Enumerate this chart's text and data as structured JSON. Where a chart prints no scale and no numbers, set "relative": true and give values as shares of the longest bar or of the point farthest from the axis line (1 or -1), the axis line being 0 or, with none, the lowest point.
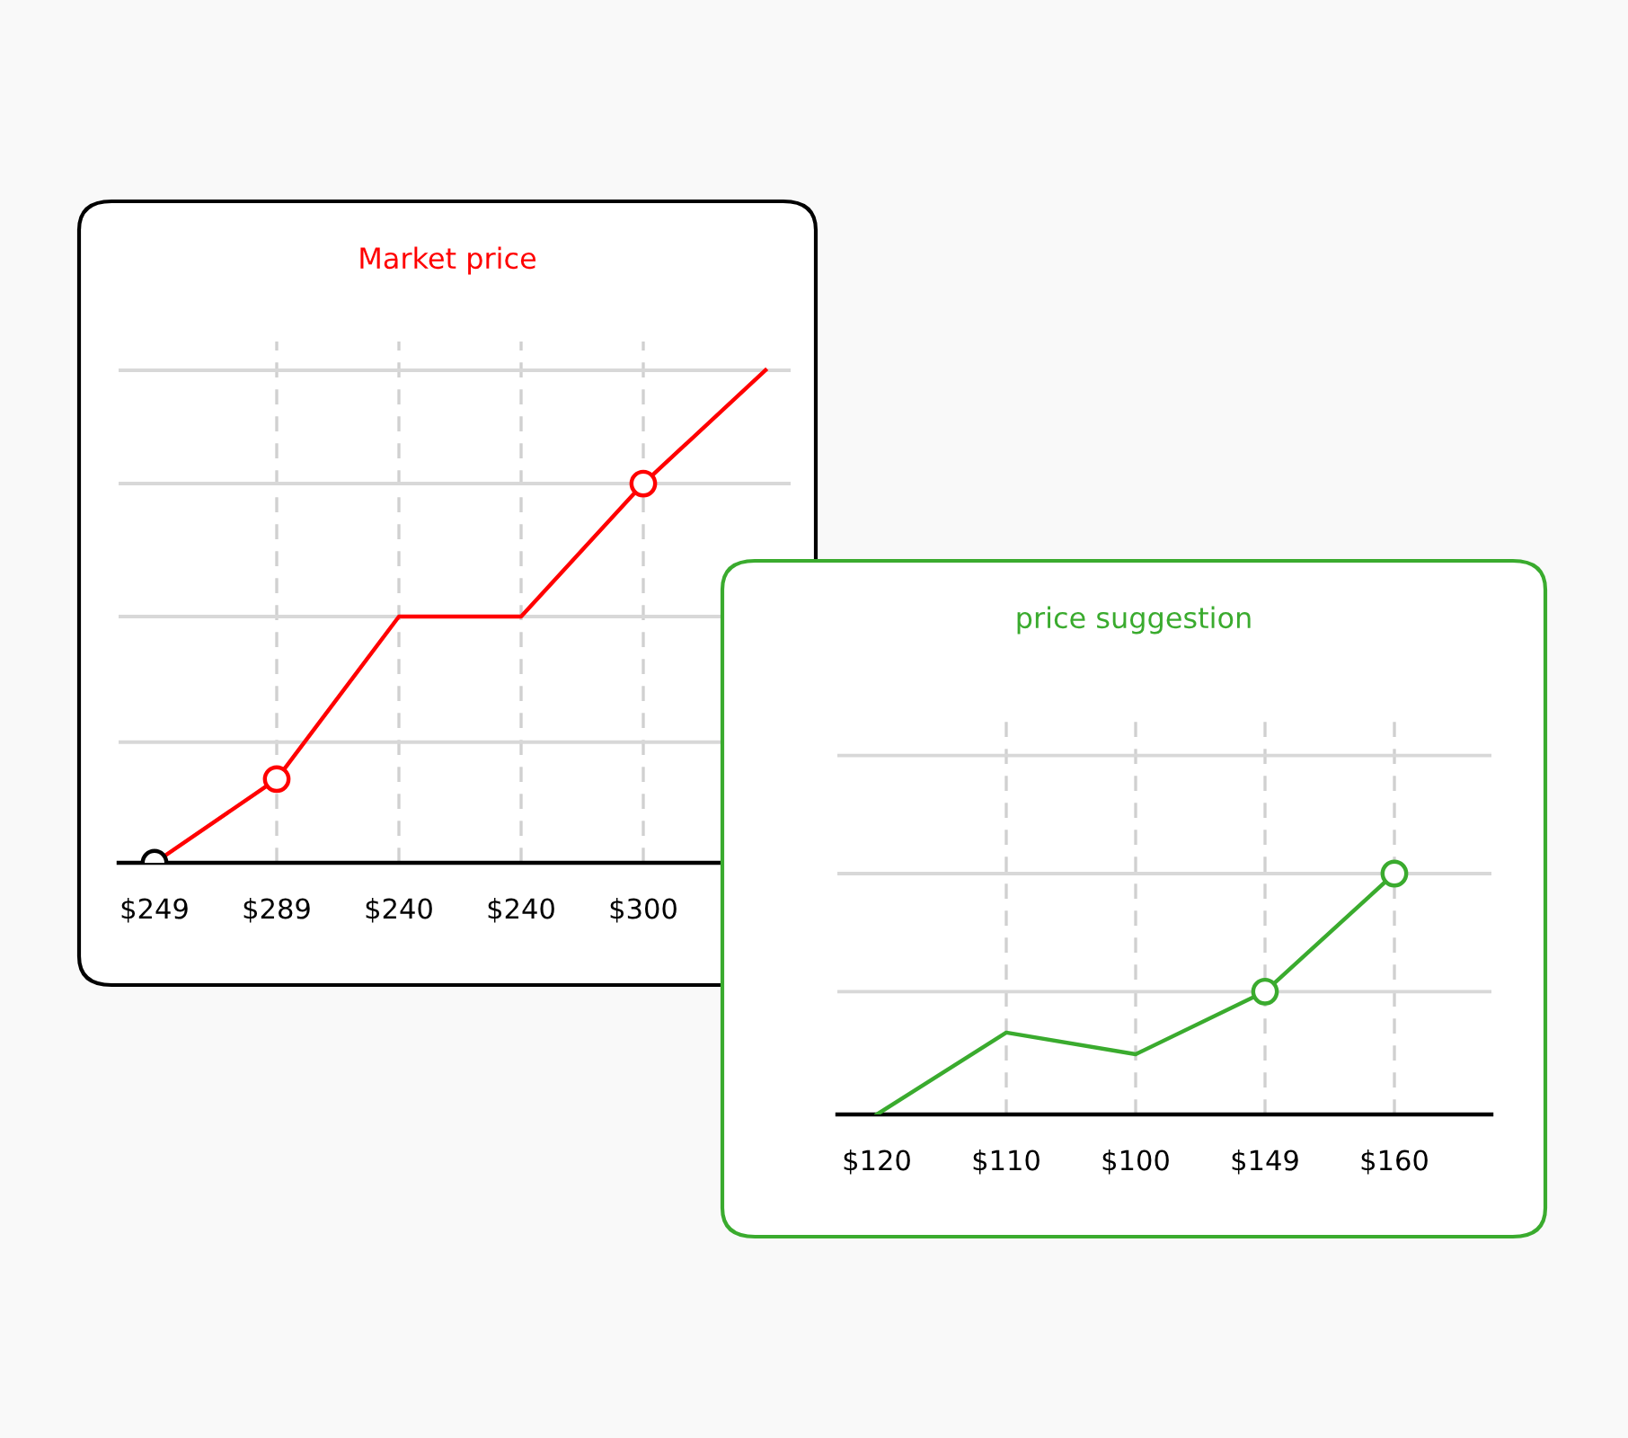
{
  "chart_data": [
    {
      "type": "line",
      "title": "Market price",
      "categories": [
        "$249",
        "$289",
        "$240",
        "$240",
        "$300",
        null
      ],
      "relative": true,
      "grid": "x",
      "ref_lines": [
        {
          "axis": "y",
          "value": 0.245,
          "color": "#d8d8d8"
        },
        {
          "axis": "y",
          "value": 0.5,
          "color": "#d8d8d8"
        },
        {
          "axis": "y",
          "value": 0.77,
          "color": "#d8d8d8"
        },
        {
          "axis": "y",
          "value": 1,
          "color": "#d8d8d8"
        }
      ],
      "series": [
        {
          "type": "line",
          "color": "#ff0000",
          "values": [
            0,
            0.17,
            0.5,
            0.5,
            0.77,
            1
          ]
        },
        {
          "type": "scatter",
          "marker": "circle",
          "colors": [
            "#000000",
            "#ff0000",
            null,
            null,
            "#ff0000",
            null
          ],
          "values": [
            0,
            0.17,
            null,
            null,
            0.77,
            null
          ]
        }
      ]
    },
    {
      "type": "line",
      "title": "price suggestion",
      "categories": [
        "$120",
        "$110",
        "$100",
        "$149",
        "$160"
      ],
      "relative": true,
      "grid": "x",
      "ref_lines": [
        {
          "axis": "y",
          "value": 0.51,
          "color": "#d8d8d8"
        },
        {
          "axis": "y",
          "value": 1,
          "color": "#d8d8d8"
        },
        {
          "axis": "y",
          "value": 1.49,
          "color": "#d8d8d8"
        }
      ],
      "series": [
        {
          "type": "line",
          "color": "#3aab2e",
          "values": [
            0,
            0.34,
            0.25,
            0.51,
            1
          ]
        },
        {
          "type": "scatter",
          "marker": "circle",
          "colors": [
            null,
            null,
            null,
            "#3aab2e",
            "#3aab2e"
          ],
          "values": [
            null,
            null,
            null,
            0.51,
            1
          ]
        }
      ]
    }
  ]
}
